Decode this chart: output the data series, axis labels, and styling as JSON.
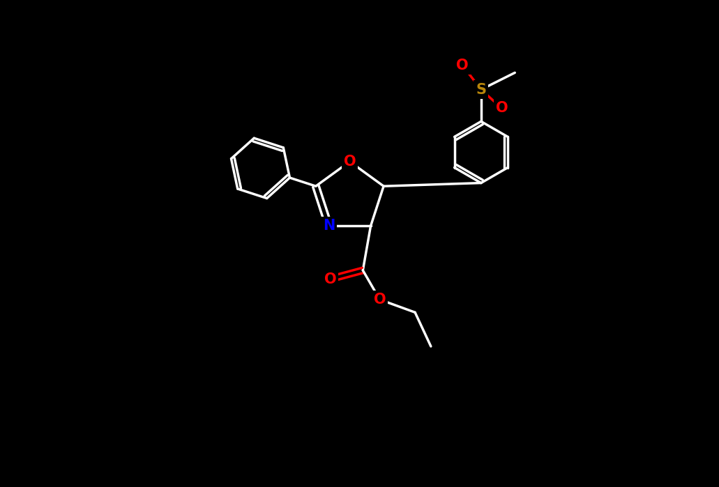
{
  "background": "#000000",
  "white": "#ffffff",
  "O_color": "#ff0000",
  "N_color": "#0000ff",
  "S_color": "#b8860b",
  "lw": 2.5,
  "fs": 15,
  "xlim": [
    -2.5,
    11.5
  ],
  "ylim": [
    -4.5,
    5.5
  ]
}
